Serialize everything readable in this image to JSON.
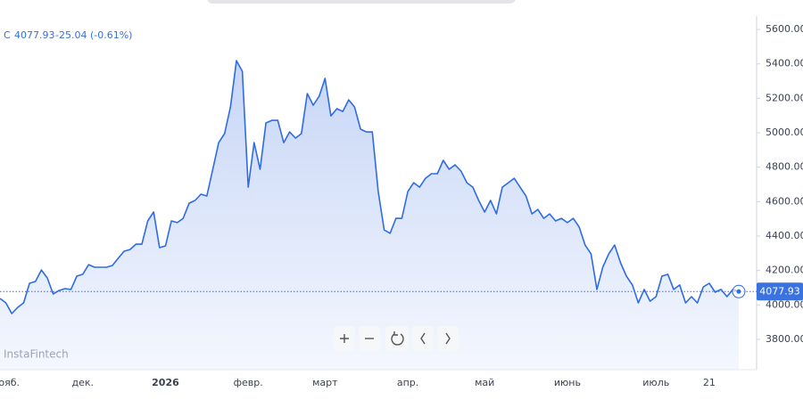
{
  "chart_data": {
    "type": "line",
    "header": {
      "symbol": "С",
      "price": "4077.93",
      "change": "-25.04 (-0.61%)"
    },
    "watermark": "InstaFintech",
    "categories": [
      null,
      "нояб.",
      null,
      null,
      null,
      null,
      null,
      null,
      null,
      null,
      null,
      null,
      null,
      null,
      "дек.",
      null,
      null,
      null,
      null,
      null,
      null,
      null,
      null,
      null,
      null,
      null,
      null,
      null,
      "2026",
      null,
      null,
      null,
      null,
      null,
      null,
      null,
      null,
      null,
      null,
      null,
      null,
      null,
      "февр.",
      null,
      null,
      null,
      null,
      null,
      null,
      null,
      null,
      null,
      null,
      null,
      null,
      "март",
      null,
      null,
      null,
      null,
      null,
      null,
      null,
      null,
      null,
      null,
      null,
      null,
      null,
      "апр.",
      null,
      null,
      null,
      null,
      null,
      null,
      null,
      null,
      null,
      null,
      null,
      null,
      "май",
      null,
      null,
      null,
      null,
      null,
      null,
      null,
      null,
      null,
      null,
      null,
      null,
      null,
      "июнь",
      null,
      null,
      null,
      null,
      null,
      null,
      null,
      null,
      null,
      null,
      null,
      null,
      null,
      null,
      "июль",
      null,
      null,
      null,
      null,
      null,
      null,
      null,
      null,
      "21",
      null,
      null,
      null,
      null,
      null
    ],
    "series": [
      {
        "color": "#2f6be3",
        "values": [
          4038,
          4012,
          3950,
          3986,
          4012,
          4126,
          4136,
          4203,
          4157,
          4064,
          4084,
          4095,
          4090,
          4167,
          4178,
          4234,
          4219,
          4219,
          4219,
          4229,
          4271,
          4312,
          4322,
          4353,
          4353,
          4488,
          4540,
          4333,
          4343,
          4488,
          4478,
          4503,
          4591,
          4607,
          4643,
          4633,
          4788,
          4943,
          4995,
          5150,
          5419,
          5357,
          4684,
          4943,
          4788,
          5057,
          5072,
          5072,
          4943,
          5005,
          4969,
          4995,
          5228,
          5160,
          5212,
          5316,
          5098,
          5140,
          5124,
          5191,
          5150,
          5021,
          5005,
          5005,
          4659,
          4436,
          4416,
          4503,
          4503,
          4659,
          4710,
          4684,
          4736,
          4762,
          4762,
          4840,
          4788,
          4814,
          4778,
          4710,
          4684,
          4607,
          4540,
          4607,
          4529,
          4684,
          4710,
          4736,
          4684,
          4633,
          4529,
          4555,
          4503,
          4529,
          4488,
          4503,
          4478,
          4503,
          4452,
          4348,
          4297,
          4090,
          4219,
          4297,
          4348,
          4245,
          4167,
          4116,
          4012,
          4090,
          4022,
          4048,
          4167,
          4178,
          4090,
          4116,
          4012,
          4048,
          4012,
          4105,
          4126,
          4074,
          4090,
          4048,
          4090,
          4077.93
        ]
      }
    ],
    "ylim": [
      3624,
      5678
    ],
    "yticks": [
      {
        "value": 3800,
        "label": "3800.00"
      },
      {
        "value": 4000,
        "label": "4000.00"
      },
      {
        "value": 4200,
        "label": "4200.00"
      },
      {
        "value": 4400,
        "label": "4400.00"
      },
      {
        "value": 4600,
        "label": "4600.00"
      },
      {
        "value": 4800,
        "label": "4800.00"
      },
      {
        "value": 5000,
        "label": "5000.00"
      },
      {
        "value": 5200,
        "label": "5200.00"
      },
      {
        "value": 5400,
        "label": "5400.00"
      },
      {
        "value": 5600,
        "label": "5600.00"
      }
    ],
    "bold_category": "2026"
  }
}
